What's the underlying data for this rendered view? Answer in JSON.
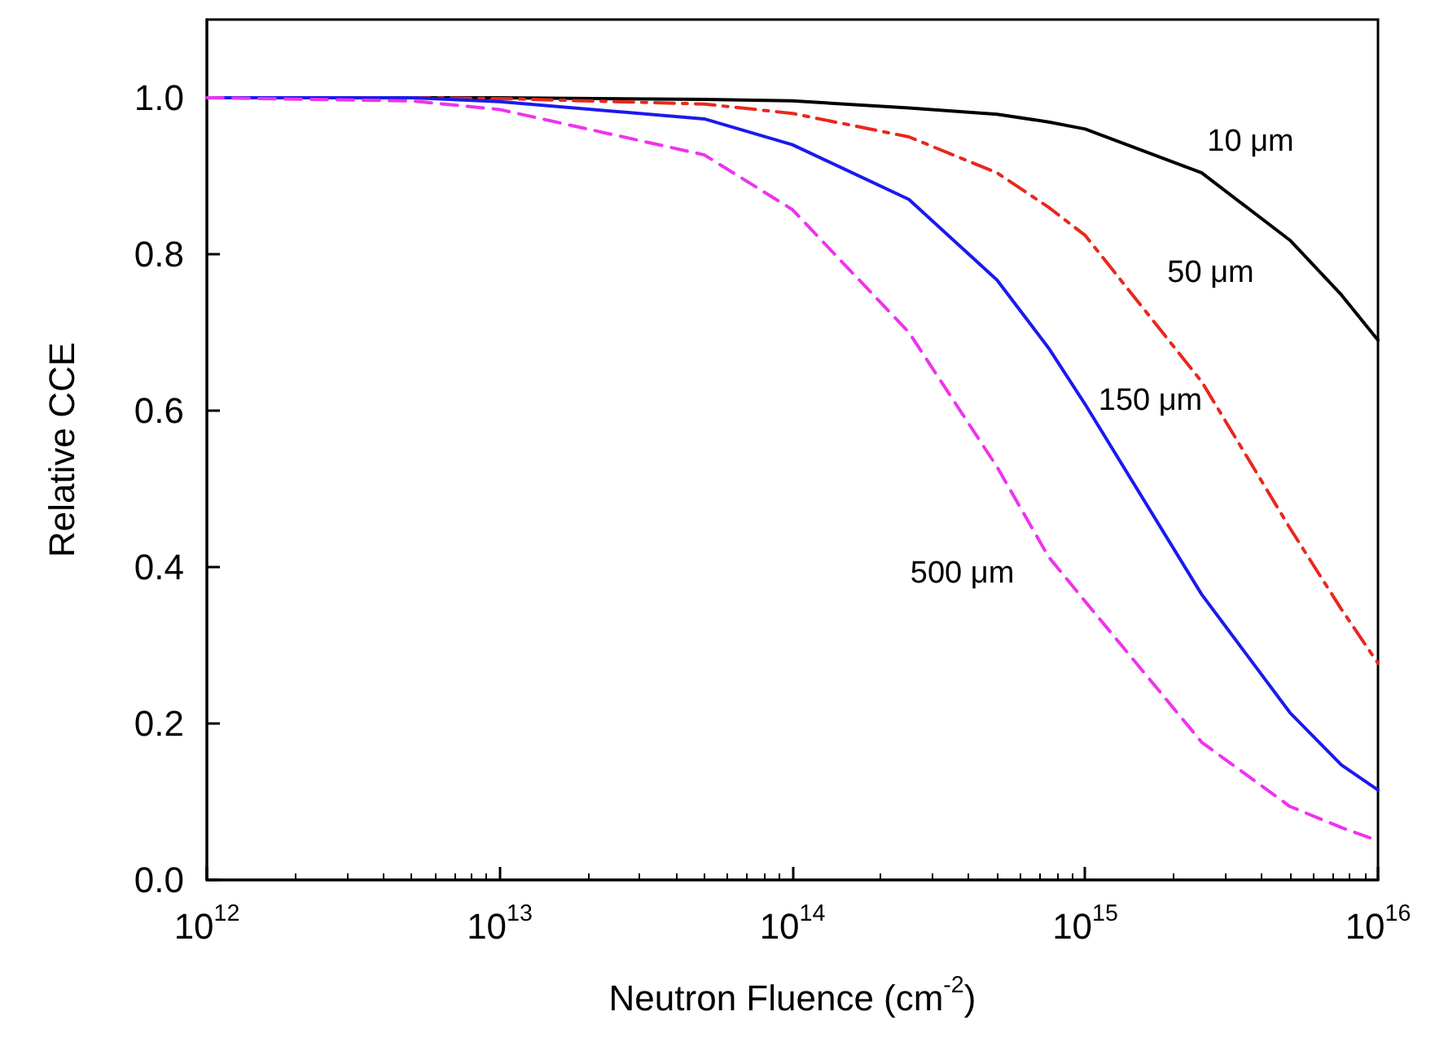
{
  "chart_data": {
    "type": "line",
    "xlabel": "Neutron Fluence (cm$^{-2}$)",
    "ylabel": "Relative CCE",
    "log": "x",
    "x": [
      1000000000000.0,
      5000000000000.0,
      10000000000000.0,
      50000000000000.0,
      100000000000000.0,
      250000000000000.0,
      500000000000000.0,
      750000000000000.0,
      1000000000000000.0,
      2500000000000000.0,
      5000000000000000.0,
      7500000000000000.0,
      1e+16
    ],
    "series": [
      {
        "name": "10 μm",
        "color": "#000000",
        "line_style": "solid",
        "values": [
          1.0,
          1.0,
          1.0,
          0.998,
          0.996,
          0.987,
          0.979,
          0.969,
          0.96,
          0.904,
          0.818,
          0.748,
          0.69
        ]
      },
      {
        "name": "50 μm",
        "color": "#e8281e",
        "line_style": "dashdot",
        "values": [
          1.0,
          1.0,
          0.999,
          0.992,
          0.98,
          0.95,
          0.904,
          0.86,
          0.824,
          0.637,
          0.45,
          0.346,
          0.277
        ]
      },
      {
        "name": "150 μm",
        "color": "#1a1aee",
        "line_style": "solid",
        "values": [
          1.0,
          1.0,
          0.995,
          0.973,
          0.94,
          0.87,
          0.767,
          0.68,
          0.608,
          0.365,
          0.214,
          0.147,
          0.115
        ]
      },
      {
        "name": "500 μm",
        "color": "#ee33ee",
        "line_style": "dashed",
        "values": [
          1.0,
          0.996,
          0.985,
          0.927,
          0.857,
          0.7,
          0.528,
          0.413,
          0.356,
          0.176,
          0.094,
          0.067,
          0.05
        ]
      }
    ],
    "xlim": [
      1000000000000.0,
      1e+16
    ],
    "xticks": [
      {
        "value": 1000000000000.0,
        "label": "10$^{12}$"
      },
      {
        "value": 10000000000000.0,
        "label": "10$^{13}$"
      },
      {
        "value": 100000000000000.0,
        "label": "10$^{14}$"
      },
      {
        "value": 1000000000000000.0,
        "label": "10$^{15}$"
      },
      {
        "value": 1e+16,
        "label": "10$^{16}$"
      }
    ],
    "ylim": [
      0,
      1.1
    ],
    "yticks": [
      {
        "value": 0,
        "label": "0.0"
      },
      {
        "value": 0.2,
        "label": "0.2"
      },
      {
        "value": 0.4,
        "label": "0.4"
      },
      {
        "value": 0.6,
        "label": "0.6"
      },
      {
        "value": 0.8,
        "label": "0.8"
      },
      {
        "value": 1,
        "label": "1.0"
      }
    ],
    "grid": false,
    "legend": false,
    "marker": "none"
  }
}
